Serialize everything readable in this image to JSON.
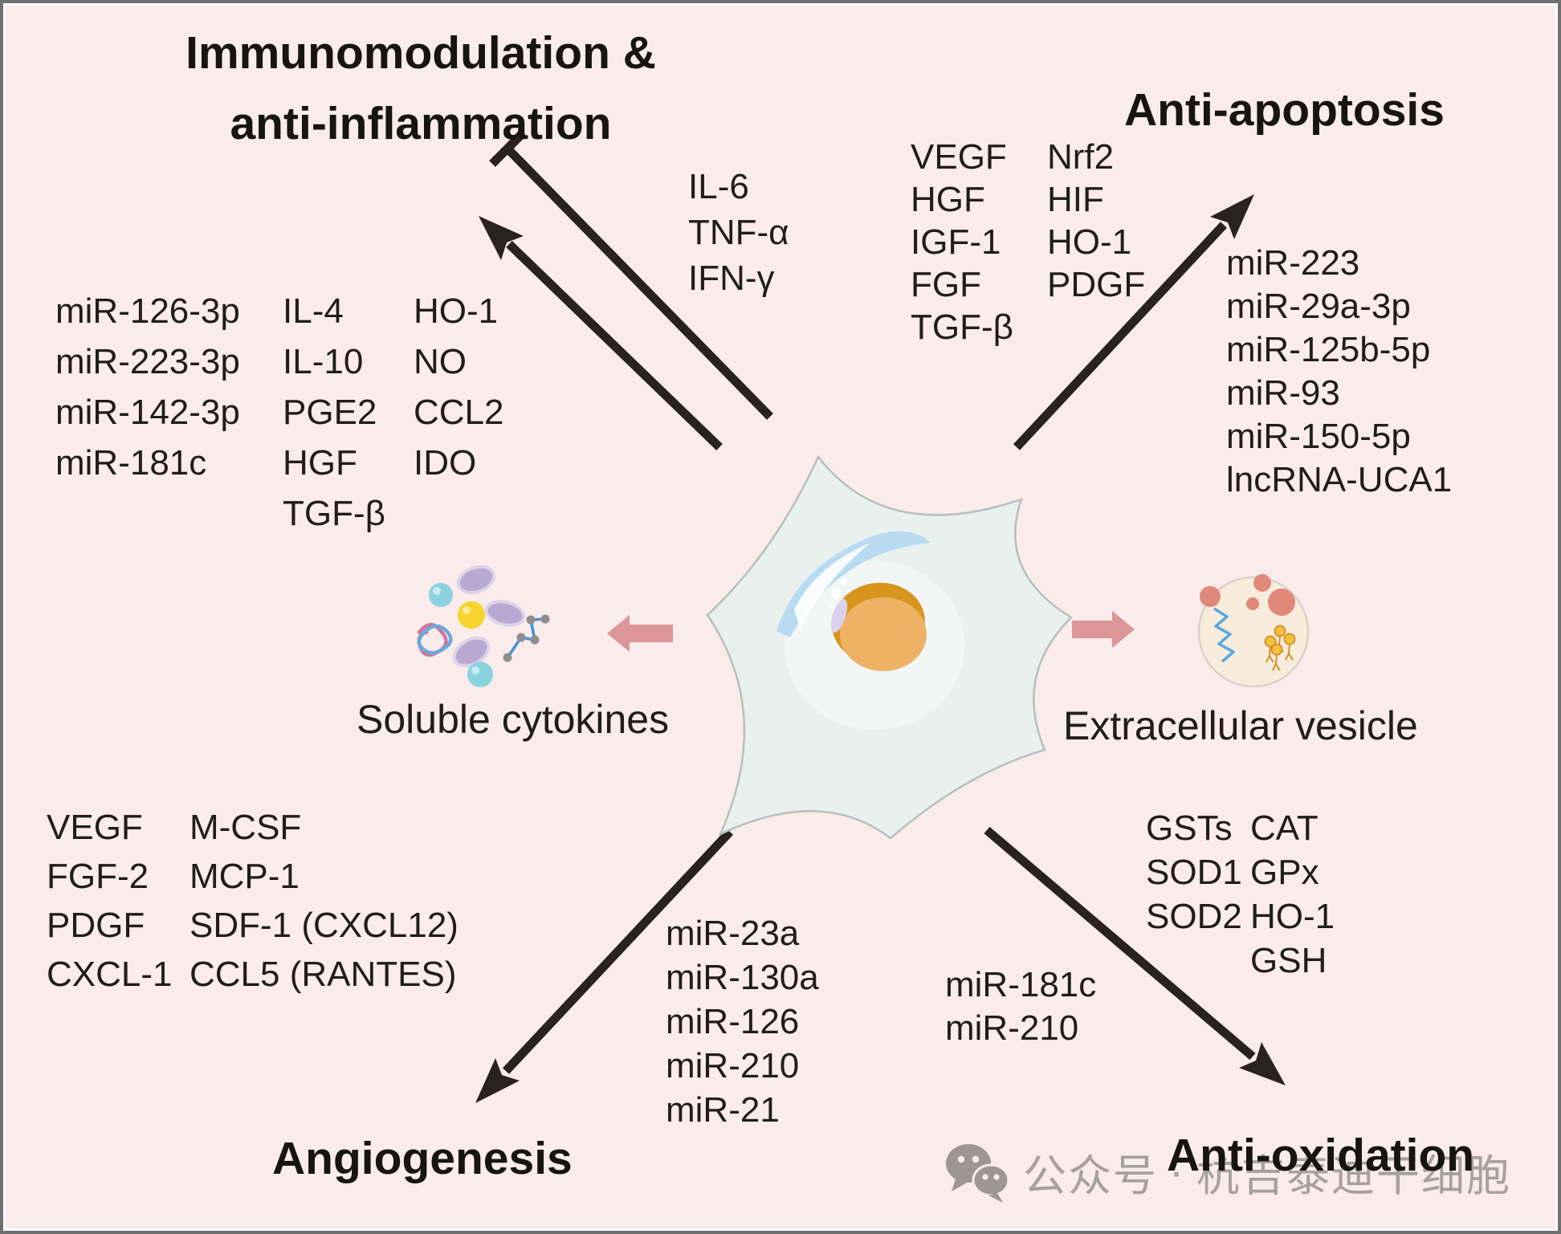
{
  "titles": {
    "immuno_line1": "Immunomodulation &",
    "immuno_line2": "anti-inflammation",
    "anti_apoptosis": "Anti-apoptosis",
    "angiogenesis": "Angiogenesis",
    "anti_oxidation": "Anti-oxidation"
  },
  "immuno": {
    "mirnas": [
      "miR-126-3p",
      "miR-223-3p",
      "miR-142-3p",
      "miR-181c"
    ],
    "mediators": [
      "IL-4",
      "IL-10",
      "PGE2",
      "HGF",
      "TGF-β"
    ],
    "effectors": [
      "HO-1",
      "NO",
      "CCL2",
      "IDO"
    ]
  },
  "inhibited_cytokines": {
    "items": [
      "IL-6",
      "TNF-α",
      "IFN-γ"
    ]
  },
  "anti_apoptosis": {
    "factors_col1": [
      "VEGF",
      "HGF",
      "IGF-1",
      "FGF",
      "TGF-β"
    ],
    "factors_col2": [
      "Nrf2",
      "HIF",
      "HO-1",
      "PDGF"
    ],
    "rnas": [
      "miR-223",
      "miR-29a-3p",
      "miR-125b-5p",
      "miR-93",
      "miR-150-5p",
      "lncRNA-UCA1"
    ]
  },
  "soluble_cytokines": {
    "label": "Soluble cytokines"
  },
  "extracellular_vesicle": {
    "label": "Extracellular vesicle"
  },
  "angiogenesis": {
    "factors_col1": [
      "VEGF",
      "FGF-2",
      "PDGF",
      "CXCL-1"
    ],
    "factors_col2": [
      "M-CSF",
      "MCP-1",
      "SDF-1 (CXCL12)",
      "CCL5 (RANTES)"
    ],
    "mirnas": [
      "miR-23a",
      "miR-130a",
      "miR-126",
      "miR-210",
      "miR-21"
    ]
  },
  "anti_oxidation": {
    "mirnas": [
      "miR-181c",
      "miR-210"
    ],
    "enzymes_col1": [
      "GSTs",
      "SOD1",
      "SOD2"
    ],
    "enzymes_col2": [
      "CAT",
      "GPx",
      "HO-1",
      "GSH"
    ]
  },
  "watermark": {
    "platform": "公众号",
    "separator": "·",
    "account": "杭吉泰迪干细胞",
    "icon": "wechat-icon"
  },
  "colors": {
    "background": "#f9eceb",
    "frame_border": "#6f6f6f",
    "text": "#201d1c",
    "arrow_black": "#2a2220",
    "arrow_pink": "#dc9598",
    "watermark_gray": "#a7a0a0",
    "cell_body": "#e9f1ef",
    "cell_outline": "#b7bfbd",
    "cell_streak_blue": "#b9dbf2",
    "nucleus_orange": "#eeb266",
    "nucleus_dark_orange": "#d8951d",
    "vesicle_fill": "#f8ecdc",
    "vesicle_dots": "#e0897b",
    "helix_blue": "#5aa7e0",
    "receptor_yellow": "#f2c43c",
    "cytokine_teal": "#8bd2df",
    "cytokine_yellow": "#f5d42c",
    "cytokine_purple": "#b9a8d2",
    "tangle_pink": "#d3739f",
    "tangle_blue": "#6fa8dc"
  }
}
